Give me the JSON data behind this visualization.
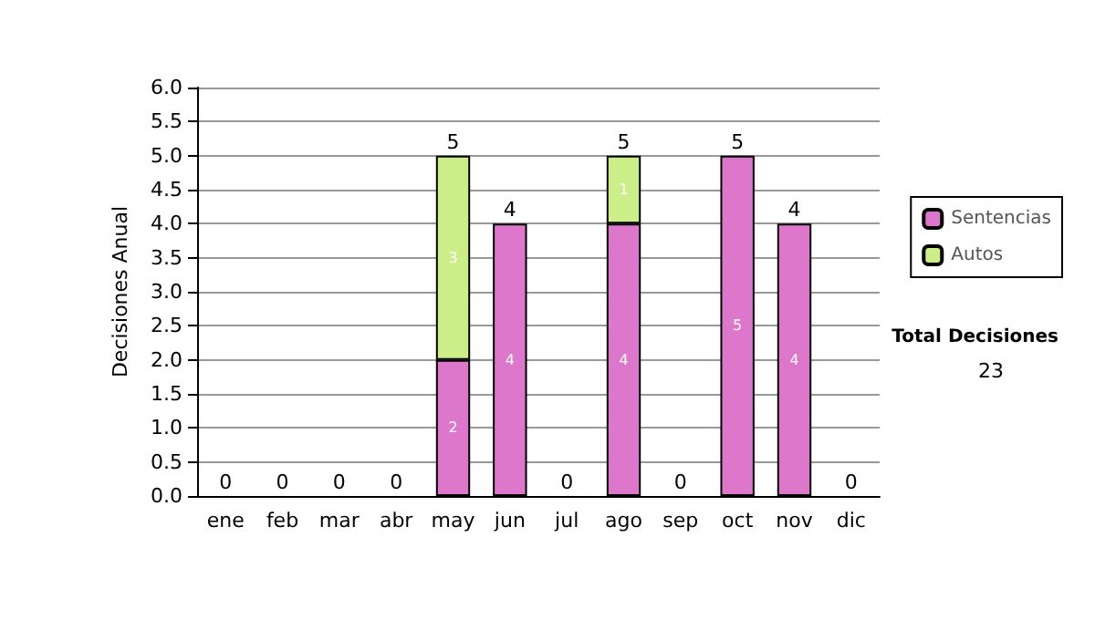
{
  "chart_data": {
    "type": "bar",
    "stacked": true,
    "ylabel": "Decisiones Anual",
    "categories": [
      "ene",
      "feb",
      "mar",
      "abr",
      "may",
      "jun",
      "jul",
      "ago",
      "sep",
      "oct",
      "nov",
      "dic"
    ],
    "series": [
      {
        "name": "Sentencias",
        "color": "#dd77cc",
        "values": [
          0,
          0,
          0,
          0,
          2,
          4,
          0,
          4,
          0,
          5,
          4,
          0
        ],
        "value_labels": [
          null,
          null,
          null,
          null,
          "2",
          "4",
          null,
          "4",
          null,
          "5",
          "4",
          null
        ]
      },
      {
        "name": "Autos",
        "color": "#ccee88",
        "values": [
          0,
          0,
          0,
          0,
          3,
          0,
          0,
          1,
          0,
          0,
          0,
          0
        ],
        "value_labels": [
          null,
          null,
          null,
          null,
          "3",
          null,
          null,
          "1",
          null,
          null,
          null,
          null
        ]
      }
    ],
    "totals": [
      "0",
      "0",
      "0",
      "0",
      "5",
      "4",
      "0",
      "5",
      "0",
      "5",
      "4",
      "0"
    ],
    "ylim": [
      0,
      6
    ],
    "yticks": [
      {
        "value": 0,
        "label": "0.0"
      },
      {
        "value": 0.5,
        "label": "0.5"
      },
      {
        "value": 1,
        "label": "1.0"
      },
      {
        "value": 1.5,
        "label": "1.5"
      },
      {
        "value": 2,
        "label": "2.0"
      },
      {
        "value": 2.5,
        "label": "2.5"
      },
      {
        "value": 3,
        "label": "3.0"
      },
      {
        "value": 3.5,
        "label": "3.5"
      },
      {
        "value": 4,
        "label": "4.0"
      },
      {
        "value": 4.5,
        "label": "4.5"
      },
      {
        "value": 5,
        "label": "5.0"
      },
      {
        "value": 5.5,
        "label": "5.5"
      },
      {
        "value": 6,
        "label": "6.0"
      }
    ],
    "grid": "y",
    "legend": "right",
    "annotations": [
      "Total Decisiones",
      "23"
    ]
  }
}
